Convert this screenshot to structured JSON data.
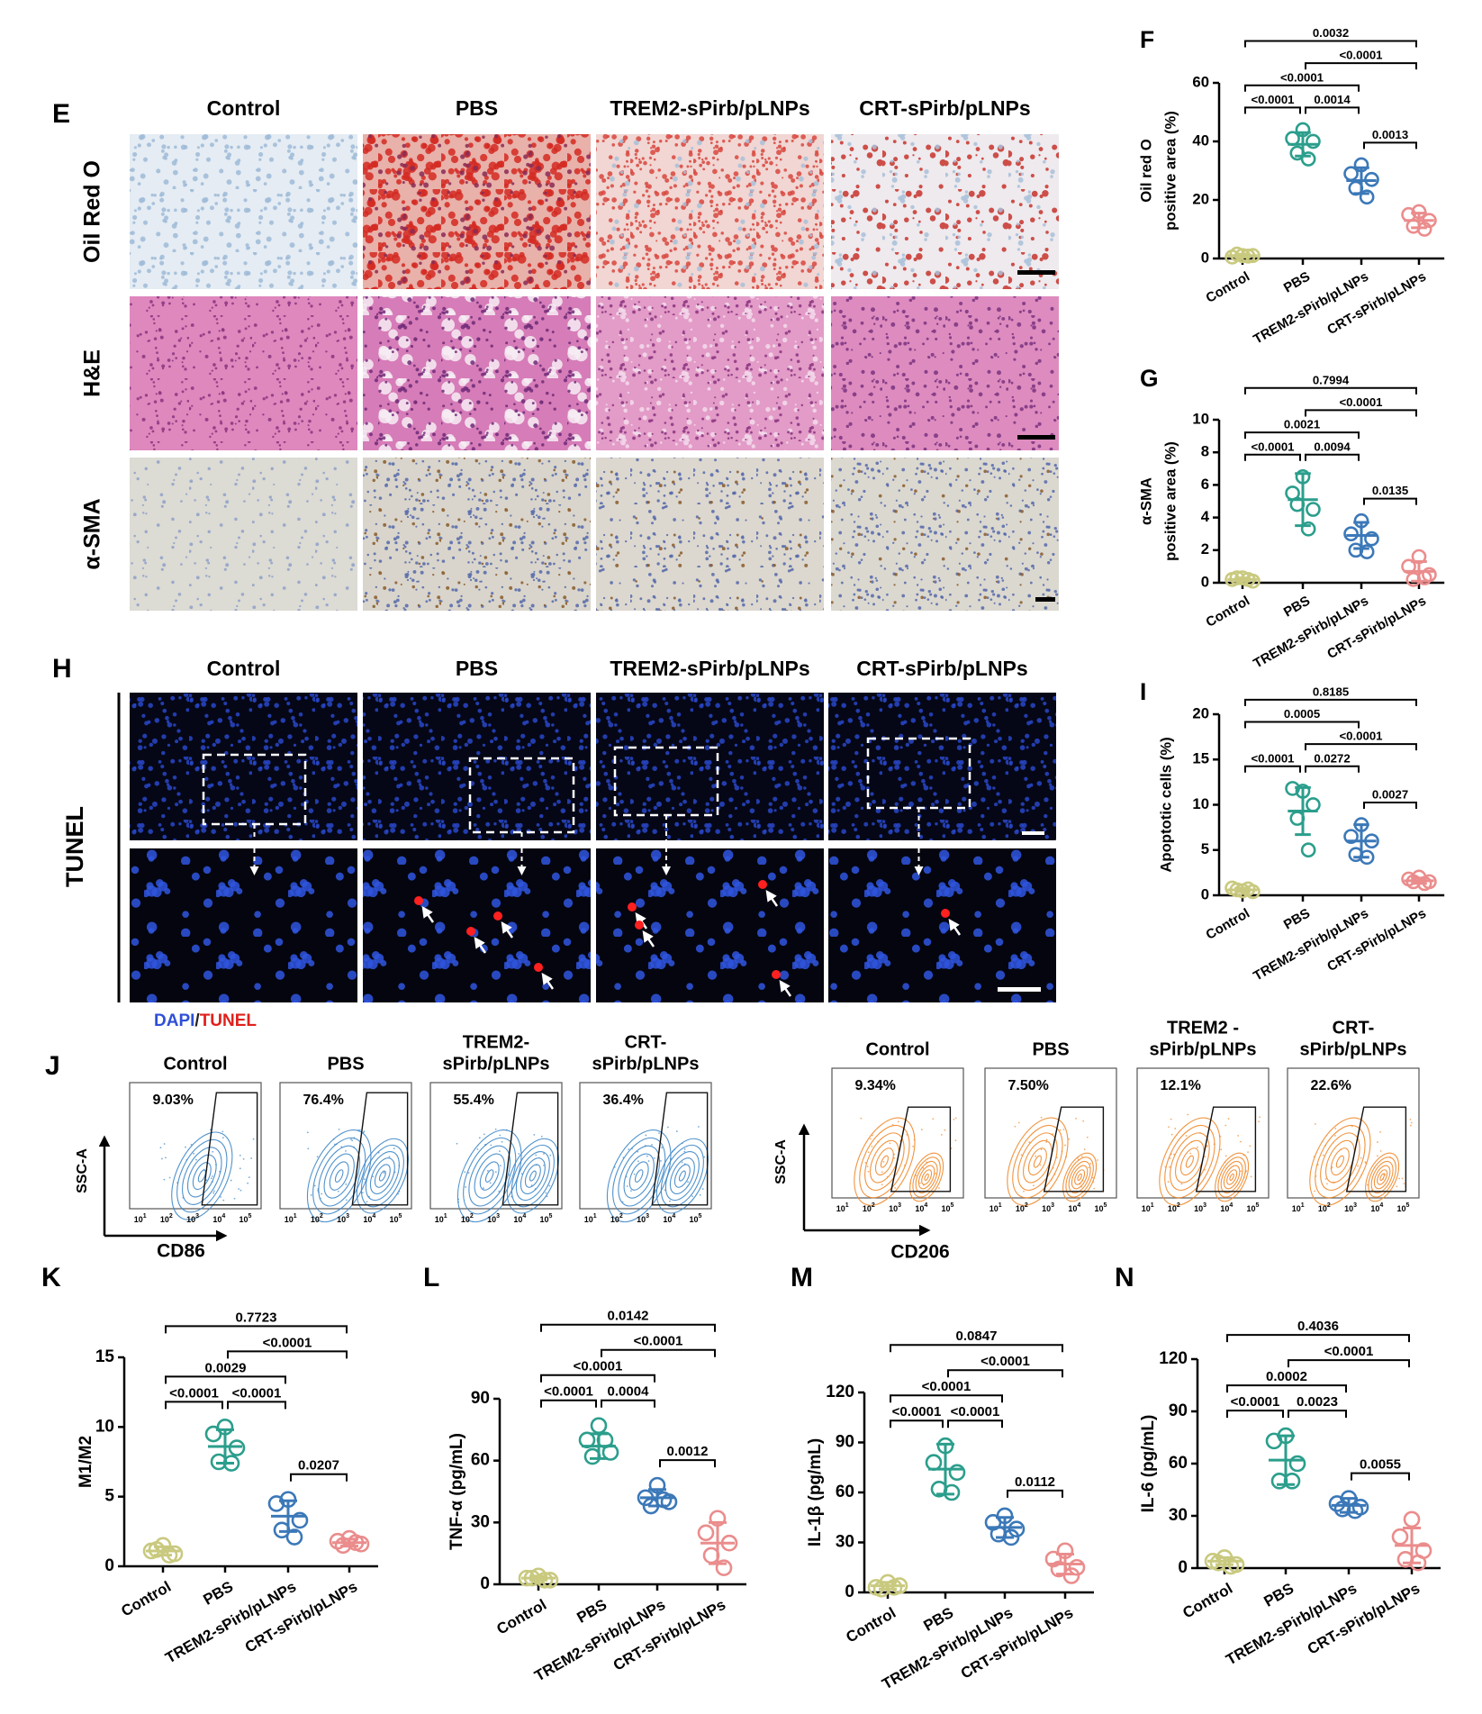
{
  "histology": {
    "panel": "E",
    "columns": [
      "Control",
      "PBS",
      "TREM2-sPirb/pLNPs",
      "CRT-sPirb/pLNPs"
    ],
    "rows": [
      "Oil Red O",
      "H&E",
      "α-SMA"
    ]
  },
  "tunel": {
    "panel": "H",
    "columns": [
      "Control",
      "PBS",
      "TREM2-sPirb/pLNPs",
      "CRT-sPirb/pLNPs"
    ],
    "row_label": "TUNEL",
    "legend": [
      {
        "text": "DAPI",
        "color": "#2f4fd6"
      },
      {
        "text": "/",
        "color": "#222222"
      },
      {
        "text": "TUNEL",
        "color": "#e0201b"
      }
    ]
  },
  "flow": {
    "panel": "J",
    "tick_base": "10",
    "tick_exponents": [
      "1",
      "2",
      "3",
      "4",
      "5"
    ],
    "groups": [
      {
        "color": "#3d86c6",
        "y_label": "SSC-A",
        "x_label": "CD86",
        "plots": [
          {
            "title": [
              "Control"
            ],
            "percent": "9.03%"
          },
          {
            "title": [
              "PBS"
            ],
            "percent": "76.4%"
          },
          {
            "title": [
              "TREM2-",
              "sPirb/pLNPs"
            ],
            "percent": "55.4%"
          },
          {
            "title": [
              "CRT-",
              "sPirb/pLNPs"
            ],
            "percent": "36.4%"
          }
        ]
      },
      {
        "color": "#f0882a",
        "y_label": "SSC-A",
        "x_label": "CD206",
        "plots": [
          {
            "title": [
              "Control"
            ],
            "percent": "9.34%"
          },
          {
            "title": [
              "PBS"
            ],
            "percent": "7.50%"
          },
          {
            "title": [
              "TREM2 -",
              "sPirb/pLNPs"
            ],
            "percent": "12.1%"
          },
          {
            "title": [
              "CRT-",
              "sPirb/pLNPs"
            ],
            "percent": "22.6%"
          }
        ]
      }
    ]
  },
  "chart_data": [
    {
      "type": "dot",
      "panel": "F",
      "ylabel": [
        "Oil red O",
        "positive area (%)"
      ],
      "categories": [
        "Control",
        "PBS",
        "TREM2-sPirb/pLNPs",
        "CRT-sPirb/pLNPs"
      ],
      "colors": [
        "#c9c97f",
        "#2b9e8c",
        "#3b78b8",
        "#eb8c8c"
      ],
      "points": [
        [
          1,
          0.5,
          1,
          1.5,
          0.8
        ],
        [
          44,
          41,
          40,
          36,
          34
        ],
        [
          32,
          29,
          27,
          24,
          21
        ],
        [
          16,
          15,
          13,
          11,
          10
        ]
      ],
      "mean": [
        1,
        39,
        26.6,
        13
      ],
      "sd": [
        0.5,
        4,
        4.4,
        2.5
      ],
      "ylim": [
        0,
        60
      ],
      "yticks": [
        0,
        20,
        40,
        60
      ],
      "brackets": [
        {
          "groups": [
            0,
            1
          ],
          "label": "<0.0001"
        },
        {
          "groups": [
            1,
            2
          ],
          "label": "0.0014"
        },
        {
          "groups": [
            2,
            3
          ],
          "label": "0.0013"
        },
        {
          "groups": [
            0,
            2
          ],
          "label": "<0.0001"
        },
        {
          "groups": [
            1,
            3
          ],
          "label": "<0.0001"
        },
        {
          "groups": [
            0,
            3
          ],
          "label": "0.0032"
        }
      ]
    },
    {
      "type": "dot",
      "panel": "G",
      "ylabel": [
        "α-SMA",
        "positive area (%)"
      ],
      "categories": [
        "Control",
        "PBS",
        "TREM2-sPirb/pLNPs",
        "CRT-sPirb/pLNPs"
      ],
      "colors": [
        "#c9c97f",
        "#2b9e8c",
        "#3b78b8",
        "#eb8c8c"
      ],
      "points": [
        [
          0.3,
          0.2,
          0.1,
          0.3,
          0.2
        ],
        [
          6.5,
          5.5,
          4.5,
          4.8,
          3.3
        ],
        [
          3.8,
          3,
          2.7,
          2,
          1.9
        ],
        [
          1.6,
          1,
          0.5,
          0.2,
          0.3
        ]
      ],
      "mean": [
        0.2,
        5.1,
        2.9,
        0.7
      ],
      "sd": [
        0.1,
        1.6,
        0.8,
        0.6
      ],
      "ylim": [
        0,
        10
      ],
      "yticks": [
        0,
        2,
        4,
        6,
        8,
        10
      ],
      "brackets": [
        {
          "groups": [
            0,
            1
          ],
          "label": "<0.0001"
        },
        {
          "groups": [
            1,
            2
          ],
          "label": "0.0094"
        },
        {
          "groups": [
            2,
            3
          ],
          "label": "0.0135"
        },
        {
          "groups": [
            0,
            2
          ],
          "label": "0.0021"
        },
        {
          "groups": [
            1,
            3
          ],
          "label": "<0.0001"
        },
        {
          "groups": [
            0,
            3
          ],
          "label": "0.7994"
        }
      ]
    },
    {
      "type": "dot",
      "panel": "I",
      "ylabel": [
        "Apoptotic cells (%)"
      ],
      "categories": [
        "Control",
        "PBS",
        "TREM2-sPirb/pLNPs",
        "CRT-sPirb/pLNPs"
      ],
      "colors": [
        "#c9c97f",
        "#2b9e8c",
        "#3b78b8",
        "#eb8c8c"
      ],
      "points": [
        [
          0.5,
          0.8,
          0.4,
          0.6,
          0.7
        ],
        [
          11.5,
          11.8,
          10,
          8.5,
          5
        ],
        [
          7.8,
          6.5,
          6,
          4.5,
          4.2
        ],
        [
          2,
          1.8,
          1.5,
          1.5,
          1.3
        ]
      ],
      "mean": [
        0.6,
        9.3,
        6,
        1.6
      ],
      "sd": [
        0.2,
        2.6,
        1.8,
        0.3
      ],
      "ylim": [
        0,
        20
      ],
      "yticks": [
        0,
        5,
        10,
        15,
        20
      ],
      "brackets": [
        {
          "groups": [
            1,
            2
          ],
          "label": "0.0272"
        },
        {
          "groups": [
            2,
            3
          ],
          "label": "0.0027"
        },
        {
          "groups": [
            0,
            1
          ],
          "label": "<0.0001"
        },
        {
          "groups": [
            1,
            3
          ],
          "label": "<0.0001"
        },
        {
          "groups": [
            0,
            2
          ],
          "label": "0.0005"
        },
        {
          "groups": [
            0,
            3
          ],
          "label": "0.8185"
        }
      ]
    },
    {
      "type": "dot",
      "panel": "K",
      "ylabel": [
        "M1/M2"
      ],
      "categories": [
        "Control",
        "PBS",
        "TREM2-sPirb/pLNPs",
        "CRT-sPirb/pLNPs"
      ],
      "colors": [
        "#c9c97f",
        "#2b9e8c",
        "#3b78b8",
        "#eb8c8c"
      ],
      "points": [
        [
          1.5,
          1.1,
          0.9,
          1.2,
          0.8
        ],
        [
          10,
          9.5,
          8.5,
          7.5,
          7.4
        ],
        [
          4.8,
          4.5,
          3.3,
          2.6,
          2.1
        ],
        [
          2,
          1.8,
          1.6,
          1.5,
          1.7
        ]
      ],
      "mean": [
        1.1,
        8.6,
        3.6,
        1.7
      ],
      "sd": [
        0.3,
        1.2,
        1.1,
        0.25
      ],
      "ylim": [
        0,
        15
      ],
      "yticks": [
        0,
        5,
        10,
        15
      ],
      "brackets": [
        {
          "groups": [
            0,
            1
          ],
          "label": "<0.0001"
        },
        {
          "groups": [
            1,
            2
          ],
          "label": "<0.0001"
        },
        {
          "groups": [
            2,
            3
          ],
          "label": "0.0207"
        },
        {
          "groups": [
            0,
            2
          ],
          "label": "0.0029"
        },
        {
          "groups": [
            1,
            3
          ],
          "label": "<0.0001"
        },
        {
          "groups": [
            0,
            3
          ],
          "label": "0.7723"
        }
      ]
    },
    {
      "type": "dot",
      "panel": "L",
      "ylabel": [
        "TNF-α (pg/mL)"
      ],
      "categories": [
        "Control",
        "PBS",
        "TREM2-sPirb/pLNPs",
        "CRT-sPirb/pLNPs"
      ],
      "colors": [
        "#c9c97f",
        "#2b9e8c",
        "#3b78b8",
        "#eb8c8c"
      ],
      "points": [
        [
          4,
          3,
          2,
          3,
          2
        ],
        [
          77,
          70,
          64,
          62,
          70
        ],
        [
          48,
          42,
          40,
          38,
          41
        ],
        [
          32,
          25,
          20,
          14,
          8
        ]
      ],
      "mean": [
        3,
        67,
        42,
        20
      ],
      "sd": [
        1,
        6,
        4,
        10
      ],
      "ylim": [
        0,
        90
      ],
      "yticks": [
        0,
        30,
        60,
        90
      ],
      "brackets": [
        {
          "groups": [
            0,
            1
          ],
          "label": "<0.0001"
        },
        {
          "groups": [
            1,
            2
          ],
          "label": "0.0004"
        },
        {
          "groups": [
            2,
            3
          ],
          "label": "0.0012"
        },
        {
          "groups": [
            0,
            2
          ],
          "label": "<0.0001"
        },
        {
          "groups": [
            1,
            3
          ],
          "label": "<0.0001"
        },
        {
          "groups": [
            0,
            3
          ],
          "label": "0.0142"
        }
      ]
    },
    {
      "type": "dot",
      "panel": "M",
      "ylabel": [
        "IL-1β (pg/mL)"
      ],
      "categories": [
        "Control",
        "PBS",
        "TREM2-sPirb/pLNPs",
        "CRT-sPirb/pLNPs"
      ],
      "colors": [
        "#c9c97f",
        "#2b9e8c",
        "#3b78b8",
        "#eb8c8c"
      ],
      "points": [
        [
          6,
          3,
          4,
          2,
          3
        ],
        [
          88,
          78,
          72,
          62,
          60
        ],
        [
          46,
          42,
          38,
          35,
          33
        ],
        [
          25,
          20,
          15,
          14,
          10
        ]
      ],
      "mean": [
        4,
        74,
        39,
        17
      ],
      "sd": [
        2,
        15,
        6,
        6
      ],
      "ylim": [
        0,
        120
      ],
      "yticks": [
        0,
        30,
        60,
        90,
        120
      ],
      "brackets": [
        {
          "groups": [
            0,
            1
          ],
          "label": "<0.0001"
        },
        {
          "groups": [
            1,
            2
          ],
          "label": "<0.0001"
        },
        {
          "groups": [
            2,
            3
          ],
          "label": "0.0112"
        },
        {
          "groups": [
            0,
            2
          ],
          "label": "<0.0001"
        },
        {
          "groups": [
            1,
            3
          ],
          "label": "<0.0001"
        },
        {
          "groups": [
            0,
            3
          ],
          "label": "0.0847"
        }
      ]
    },
    {
      "type": "dot",
      "panel": "N",
      "ylabel": [
        "IL-6 (pg/mL)"
      ],
      "categories": [
        "Control",
        "PBS",
        "TREM2-sPirb/pLNPs",
        "CRT-sPirb/pLNPs"
      ],
      "colors": [
        "#c9c97f",
        "#2b9e8c",
        "#3b78b8",
        "#eb8c8c"
      ],
      "points": [
        [
          6,
          4,
          2,
          3,
          1
        ],
        [
          76,
          73,
          60,
          50,
          50
        ],
        [
          40,
          37,
          35,
          34,
          33
        ],
        [
          28,
          18,
          10,
          5,
          3
        ]
      ],
      "mean": [
        4,
        62,
        36,
        13
      ],
      "sd": [
        2,
        14,
        4,
        10
      ],
      "ylim": [
        0,
        120
      ],
      "yticks": [
        0,
        30,
        60,
        90,
        120
      ],
      "brackets": [
        {
          "groups": [
            0,
            1
          ],
          "label": "<0.0001"
        },
        {
          "groups": [
            2,
            3
          ],
          "label": "0.0055"
        },
        {
          "groups": [
            1,
            2
          ],
          "label": "0.0023"
        },
        {
          "groups": [
            0,
            2
          ],
          "label": "0.0002"
        },
        {
          "groups": [
            1,
            3
          ],
          "label": "<0.0001"
        },
        {
          "groups": [
            0,
            3
          ],
          "label": "0.4036"
        }
      ]
    }
  ]
}
